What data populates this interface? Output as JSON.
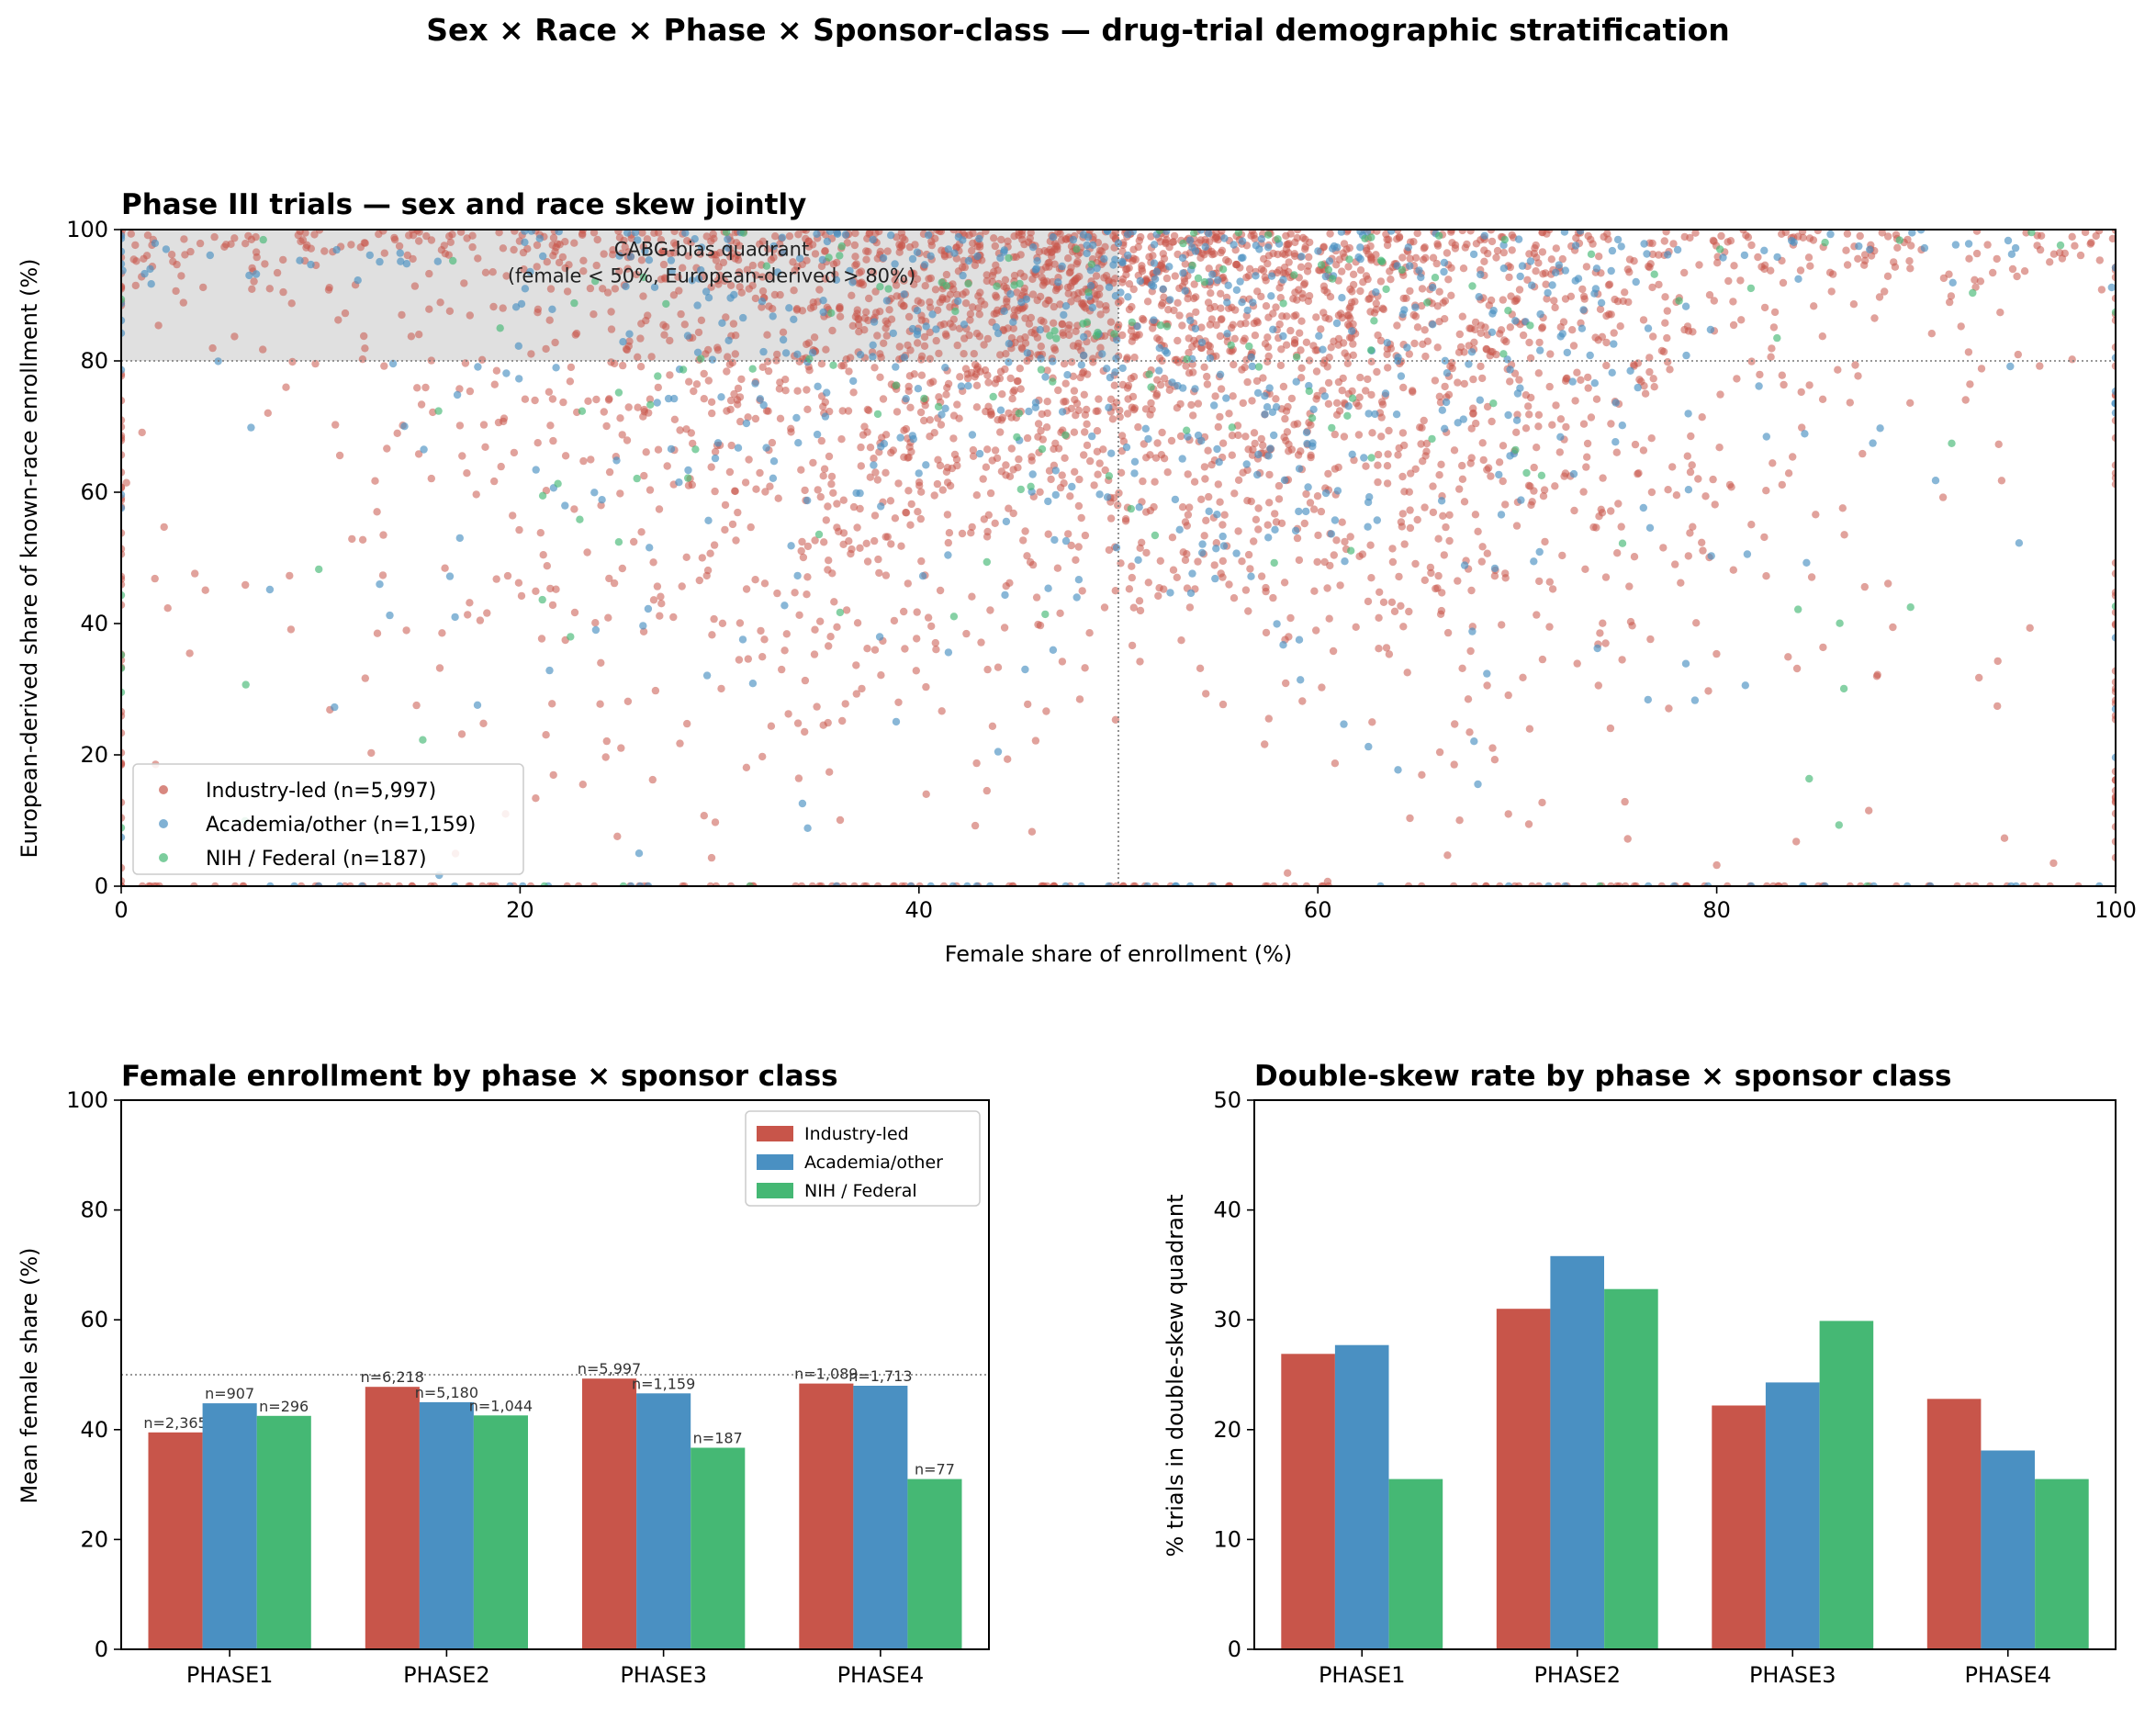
{
  "figure": {
    "title": "Sex × Race × Phase × Sponsor-class — drug-trial demographic stratification"
  },
  "colors": {
    "industry": "#c8554a",
    "academia": "#4a90c2",
    "nih": "#45b874",
    "region": "#e0e0e0"
  },
  "chart_data": [
    {
      "type": "scatter",
      "title": "Phase III trials — sex and race skew jointly",
      "xlabel": "Female share of enrollment (%)",
      "ylabel": "European-derived share of known-race enrollment (%)",
      "xlim": [
        0,
        100
      ],
      "ylim": [
        0,
        100
      ],
      "xticks": [
        0,
        20,
        40,
        60,
        80,
        100
      ],
      "yticks": [
        0,
        20,
        40,
        60,
        80,
        100
      ],
      "reference_lines": {
        "x": 50,
        "y": 80
      },
      "region": {
        "x": [
          0,
          50
        ],
        "y": [
          80,
          100
        ],
        "label_line1": "CABG-bias quadrant",
        "label_line2": "(female < 50%, European-derived > 80%)",
        "label_x": 25,
        "label_y": 94.5
      },
      "legend_position": "lower-left",
      "series": [
        {
          "name": "Industry-led (n=5,997)",
          "n": 5997,
          "color_key": "industry"
        },
        {
          "name": "Academia/other (n=1,159)",
          "n": 1159,
          "color_key": "academia"
        },
        {
          "name": "NIH / Federal (n=187)",
          "n": 187,
          "color_key": "nih"
        }
      ]
    },
    {
      "type": "bar",
      "title": "Female enrollment by phase × sponsor class",
      "xlabel": "",
      "ylabel": "Mean female share (%)",
      "ylim": [
        0,
        100
      ],
      "yticks": [
        0,
        20,
        40,
        60,
        80,
        100
      ],
      "reference_line_y": 50,
      "legend_position": "top-right",
      "categories": [
        "PHASE1",
        "PHASE2",
        "PHASE3",
        "PHASE4"
      ],
      "series": [
        {
          "name": "Industry-led",
          "color_key": "industry",
          "values": [
            39.5,
            47.8,
            49.3,
            48.4
          ],
          "labels": [
            "n=2,365",
            "n=6,218",
            "n=5,997",
            "n=1,089"
          ]
        },
        {
          "name": "Academia/other",
          "color_key": "academia",
          "values": [
            44.8,
            45.0,
            46.6,
            48.0
          ],
          "labels": [
            "n=907",
            "n=5,180",
            "n=1,159",
            "n=1,713"
          ]
        },
        {
          "name": "NIH / Federal",
          "color_key": "nih",
          "values": [
            42.5,
            42.6,
            36.7,
            31.0
          ],
          "labels": [
            "n=296",
            "n=1,044",
            "n=187",
            "n=77"
          ]
        }
      ]
    },
    {
      "type": "bar",
      "title": "Double-skew rate by phase × sponsor class",
      "xlabel": "",
      "ylabel": "% trials in double-skew quadrant",
      "ylim": [
        0,
        50
      ],
      "yticks": [
        0,
        10,
        20,
        30,
        40,
        50
      ],
      "categories": [
        "PHASE1",
        "PHASE2",
        "PHASE3",
        "PHASE4"
      ],
      "series": [
        {
          "name": "Industry-led",
          "color_key": "industry",
          "values": [
            26.9,
            31.0,
            22.2,
            22.8
          ]
        },
        {
          "name": "Academia/other",
          "color_key": "academia",
          "values": [
            27.7,
            35.8,
            24.3,
            18.1
          ]
        },
        {
          "name": "NIH / Federal",
          "color_key": "nih",
          "values": [
            15.5,
            32.8,
            29.9,
            15.5
          ]
        }
      ]
    }
  ]
}
